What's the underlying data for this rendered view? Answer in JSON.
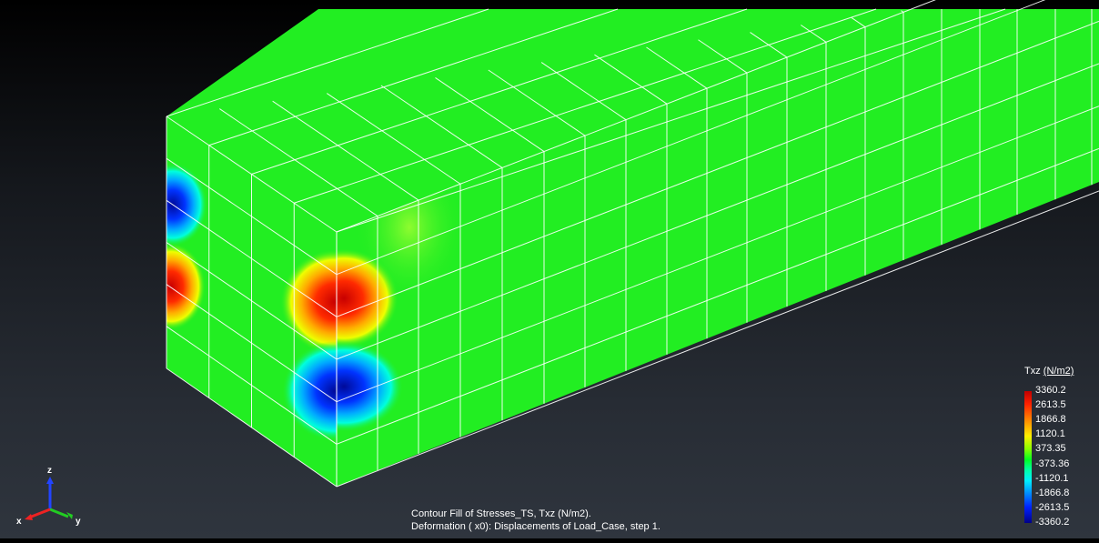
{
  "legend": {
    "quantity": "Txz",
    "unit": "(N/m2)",
    "ticks": [
      "3360.2",
      "2613.5",
      "1866.8",
      "1120.1",
      "373.35",
      "-373.36",
      "-1120.1",
      "-1866.8",
      "-2613.5",
      "-3360.2"
    ]
  },
  "caption": {
    "line1": "Contour Fill of Stresses_TS, Txz (N/m2).",
    "line2": "Deformation ( x0): Displacements of Load_Case, step 1."
  },
  "axes": {
    "x": "x",
    "y": "y",
    "z": "z"
  },
  "colors": {
    "mesh_fill": "#22ee22",
    "mesh_lines": "#ffffff",
    "high": "#ff1a00",
    "low": "#0022cc",
    "background_top": "#000000",
    "background_bottom": "#2f353e"
  }
}
